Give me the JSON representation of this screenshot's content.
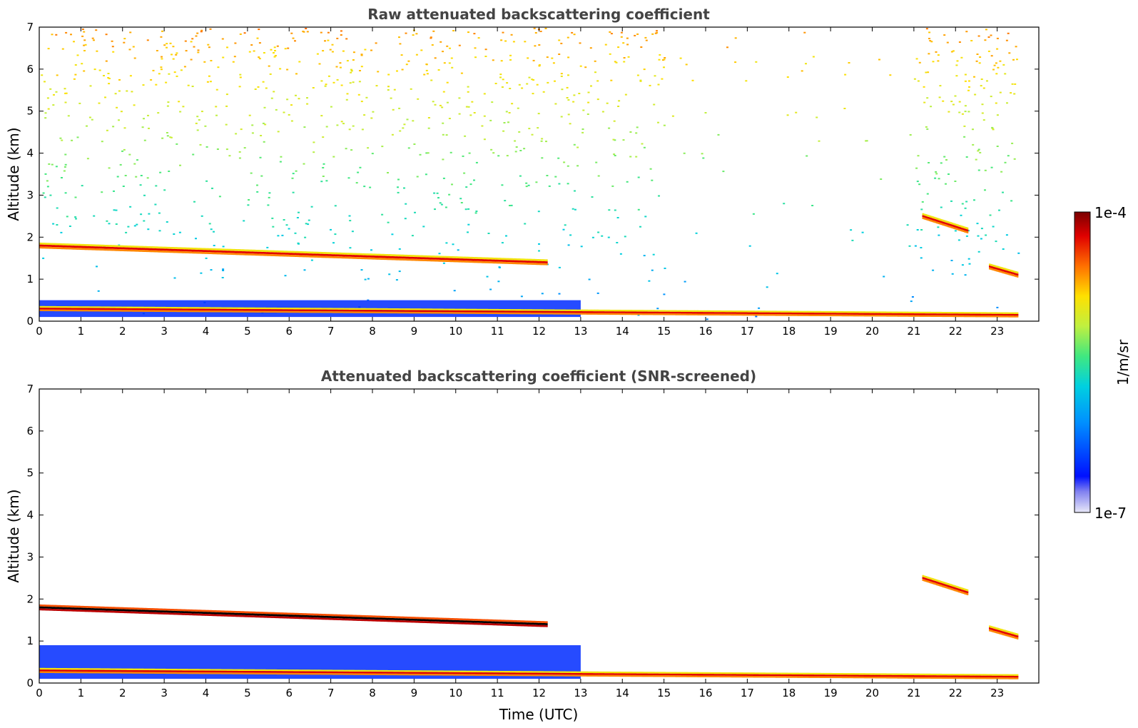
{
  "chart_data": [
    {
      "type": "heatmap",
      "title": "Raw attenuated backscattering coefficient",
      "ylabel": "Altitude (km)",
      "xlabel": "",
      "xlim": [
        0,
        24
      ],
      "ylim": [
        0,
        7
      ],
      "xticks": [
        0,
        1,
        2,
        3,
        4,
        5,
        6,
        7,
        8,
        9,
        10,
        11,
        12,
        13,
        14,
        15,
        16,
        17,
        18,
        19,
        20,
        21,
        22,
        23
      ],
      "yticks": [
        0,
        1,
        2,
        3,
        4,
        5,
        6,
        7
      ],
      "data_end_hour": 23.5,
      "layers": [
        {
          "feature": "cloud/aerosol layer",
          "x": [
            0,
            12.2
          ],
          "y": [
            1.8,
            1.4
          ],
          "level": "high"
        },
        {
          "feature": "elevated layer",
          "x": [
            21.2,
            22.3
          ],
          "y": [
            2.5,
            2.15
          ],
          "level": "high"
        },
        {
          "feature": "elevated layer",
          "x": [
            22.8,
            23.5
          ],
          "y": [
            1.3,
            1.1
          ],
          "level": "high"
        },
        {
          "feature": "near-surface layer",
          "x": [
            0,
            23.5
          ],
          "y": [
            0.3,
            0.15
          ],
          "level": "high"
        },
        {
          "feature": "boundary layer",
          "x": [
            0,
            13
          ],
          "y": [
            0.1,
            0.5
          ],
          "level": "low"
        }
      ],
      "noise_pattern": "increases with altitude; sparse 15–21 h above 0.5 km",
      "grid": false
    },
    {
      "type": "heatmap",
      "title": "Attenuated backscattering coefficient (SNR-screened)",
      "ylabel": "Altitude (km)",
      "xlabel": "Time (UTC)",
      "xlim": [
        0,
        24
      ],
      "ylim": [
        0,
        7
      ],
      "xticks": [
        0,
        1,
        2,
        3,
        4,
        5,
        6,
        7,
        8,
        9,
        10,
        11,
        12,
        13,
        14,
        15,
        16,
        17,
        18,
        19,
        20,
        21,
        22,
        23
      ],
      "yticks": [
        0,
        1,
        2,
        3,
        4,
        5,
        6,
        7
      ],
      "data_end_hour": 23.5,
      "layers": [
        {
          "feature": "cloud layer (saturated)",
          "x": [
            0,
            12.2
          ],
          "y": [
            1.8,
            1.4
          ],
          "level": "saturated"
        },
        {
          "feature": "elevated layer",
          "x": [
            21.2,
            22.3
          ],
          "y": [
            2.5,
            2.15
          ],
          "level": "high"
        },
        {
          "feature": "elevated layer",
          "x": [
            22.8,
            23.5
          ],
          "y": [
            1.3,
            1.1
          ],
          "level": "high"
        },
        {
          "feature": "near-surface layer",
          "x": [
            0,
            23.5
          ],
          "y": [
            0.3,
            0.15
          ],
          "level": "high"
        },
        {
          "feature": "boundary layer",
          "x": [
            0,
            13
          ],
          "y": [
            0.1,
            0.9
          ],
          "level": "low"
        }
      ],
      "grid": false
    }
  ],
  "colorbar": {
    "label": "1/m/sr",
    "max_label": "1e-4",
    "min_label": "1e-7",
    "colormap": [
      "#e8e8f8",
      "#0010ff",
      "#00a0ff",
      "#20e0c0",
      "#b0f040",
      "#ffe000",
      "#ff6000",
      "#e00000",
      "#7a0000"
    ]
  }
}
